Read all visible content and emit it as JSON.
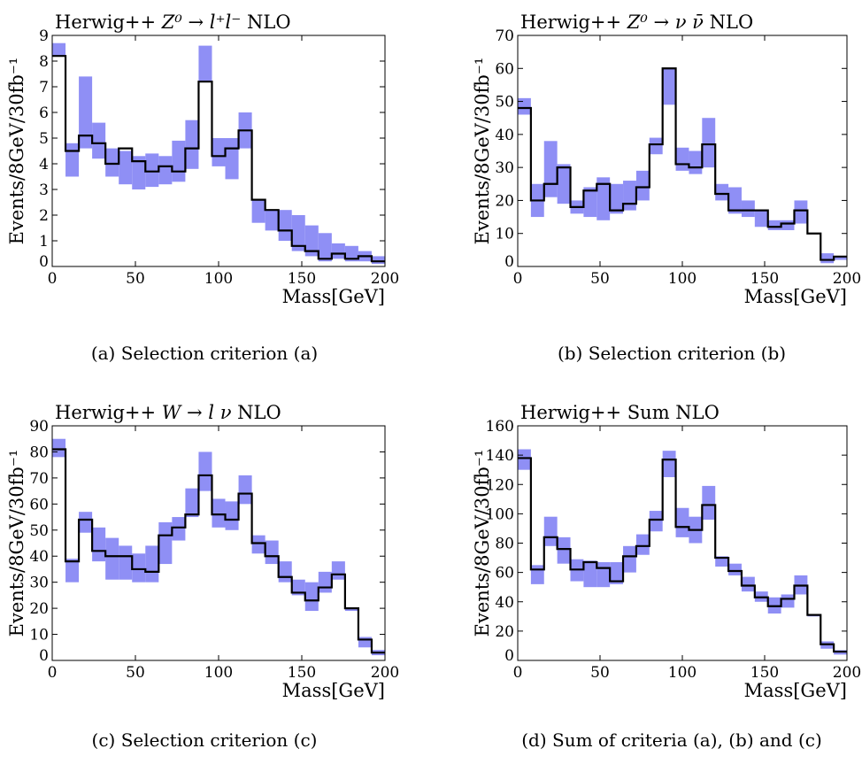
{
  "figure": {
    "panels": [
      {
        "title_prefix": "Herwig++ ",
        "title_math": "Z⁰ → l⁺l⁻",
        "title_suffix": " NLO",
        "ylabel": "Events/8GeV/30fb⁻¹",
        "xlabel": "Mass[GeV]",
        "caption": "(a) Selection criterion (a)"
      },
      {
        "title_prefix": "Herwig++ ",
        "title_math": "Z⁰ → ν ν̄",
        "title_suffix": " NLO",
        "ylabel": "Events/8GeV/30fb⁻¹",
        "xlabel": "Mass[GeV]",
        "caption": "(b) Selection criterion (b)"
      },
      {
        "title_prefix": "Herwig++ ",
        "title_math": "W → l ν",
        "title_suffix": " NLO",
        "ylabel": "Events/8GeV/30fb⁻¹",
        "xlabel": "Mass[GeV]",
        "caption": "(c) Selection criterion (c)"
      },
      {
        "title_prefix": "Herwig++ Sum NLO",
        "title_math": "",
        "title_suffix": "",
        "ylabel": "Events/8GeV/30fb⁻¹",
        "xlabel": "Mass[GeV]",
        "caption": "(d) Sum of criteria (a), (b) and (c)"
      }
    ]
  },
  "colors": {
    "band": "#8f8ff5",
    "line": "#000000"
  },
  "chart_data": [
    {
      "type": "line",
      "title": "Herwig++ Z⁰ → l⁺l⁻ NLO",
      "xlabel": "Mass[GeV]",
      "ylabel": "Events/8GeV/30fb⁻¹",
      "xlim": [
        0,
        200
      ],
      "ylim": [
        0,
        9
      ],
      "xticks": [
        0,
        50,
        100,
        150,
        200
      ],
      "yticks": [
        0,
        1,
        2,
        3,
        4,
        5,
        6,
        7,
        8,
        9
      ],
      "bin_edges": [
        0,
        8,
        16,
        24,
        32,
        40,
        48,
        56,
        64,
        72,
        80,
        88,
        96,
        104,
        112,
        120,
        128,
        136,
        144,
        152,
        160,
        168,
        176,
        184,
        192,
        200
      ],
      "series": [
        {
          "values": [
            8.2,
            4.5,
            5.1,
            4.8,
            4.0,
            4.6,
            4.1,
            3.7,
            3.9,
            3.7,
            4.6,
            7.2,
            4.3,
            4.6,
            5.3,
            2.6,
            2.2,
            1.4,
            0.8,
            0.6,
            0.3,
            0.5,
            0.3,
            0.4,
            0.2
          ]
        }
      ],
      "band_low": [
        8.2,
        3.5,
        4.6,
        4.2,
        3.5,
        3.2,
        3.0,
        3.1,
        3.2,
        3.3,
        3.8,
        7.2,
        3.9,
        3.4,
        4.6,
        1.7,
        1.4,
        1.0,
        0.6,
        0.4,
        0.2,
        0.3,
        0.2,
        0.2,
        0.1
      ],
      "band_high": [
        8.7,
        4.8,
        7.4,
        5.6,
        4.6,
        4.5,
        4.3,
        4.4,
        4.3,
        4.9,
        5.7,
        8.6,
        5.0,
        5.0,
        6.0,
        2.6,
        2.2,
        2.2,
        2.0,
        1.6,
        1.3,
        0.9,
        0.8,
        0.6,
        0.4
      ]
    },
    {
      "type": "line",
      "title": "Herwig++ Z⁰ → ν ν̄ NLO",
      "xlabel": "Mass[GeV]",
      "ylabel": "Events/8GeV/30fb⁻¹",
      "xlim": [
        0,
        200
      ],
      "ylim": [
        0,
        70
      ],
      "xticks": [
        0,
        50,
        100,
        150,
        200
      ],
      "yticks": [
        0,
        10,
        20,
        30,
        40,
        50,
        60,
        70
      ],
      "bin_edges": [
        0,
        8,
        16,
        24,
        32,
        40,
        48,
        56,
        64,
        72,
        80,
        88,
        96,
        104,
        112,
        120,
        128,
        136,
        144,
        152,
        160,
        168,
        176,
        184,
        192,
        200
      ],
      "series": [
        {
          "values": [
            48,
            20,
            25,
            30,
            18,
            23,
            25,
            17,
            19,
            24,
            37,
            60,
            31,
            30,
            37,
            22,
            17,
            17,
            17,
            12,
            13,
            17,
            10,
            2,
            3
          ]
        }
      ],
      "band_low": [
        46,
        15,
        21,
        19,
        16,
        15,
        14,
        16,
        17,
        20,
        34,
        49,
        29,
        28,
        30,
        20,
        16,
        15,
        12,
        11,
        11,
        13,
        10,
        1,
        2
      ],
      "band_high": [
        51,
        25,
        38,
        31,
        20,
        24,
        27,
        25,
        26,
        29,
        39,
        60,
        36,
        35,
        45,
        25,
        24,
        20,
        17,
        14,
        14,
        20,
        10,
        4,
        3
      ]
    },
    {
      "type": "line",
      "title": "Herwig++ W → l ν NLO",
      "xlabel": "Mass[GeV]",
      "ylabel": "Events/8GeV/30fb⁻¹",
      "xlim": [
        0,
        200
      ],
      "ylim": [
        0,
        90
      ],
      "xticks": [
        0,
        50,
        100,
        150,
        200
      ],
      "yticks": [
        0,
        10,
        20,
        30,
        40,
        50,
        60,
        70,
        80,
        90
      ],
      "bin_edges": [
        0,
        8,
        16,
        24,
        32,
        40,
        48,
        56,
        64,
        72,
        80,
        88,
        96,
        104,
        112,
        120,
        128,
        136,
        144,
        152,
        160,
        168,
        176,
        184,
        192,
        200
      ],
      "series": [
        {
          "values": [
            81,
            38,
            54,
            42,
            40,
            40,
            35,
            34,
            48,
            51,
            56,
            71,
            56,
            54,
            64,
            45,
            40,
            32,
            26,
            23,
            28,
            33,
            20,
            8,
            3
          ]
        }
      ],
      "band_low": [
        78,
        30,
        49,
        38,
        31,
        31,
        30,
        30,
        37,
        46,
        55,
        65,
        51,
        50,
        60,
        41,
        37,
        30,
        25,
        19,
        26,
        31,
        19,
        5,
        2
      ],
      "band_high": [
        85,
        39,
        57,
        51,
        47,
        44,
        41,
        44,
        53,
        55,
        66,
        80,
        62,
        61,
        71,
        48,
        46,
        38,
        31,
        30,
        34,
        38,
        20,
        9,
        4
      ]
    },
    {
      "type": "line",
      "title": "Herwig++ Sum NLO",
      "xlabel": "Mass[GeV]",
      "ylabel": "Events/8GeV/30fb⁻¹",
      "xlim": [
        0,
        200
      ],
      "ylim": [
        0,
        160
      ],
      "xticks": [
        0,
        50,
        100,
        150,
        200
      ],
      "yticks": [
        0,
        20,
        40,
        60,
        80,
        100,
        120,
        140,
        160
      ],
      "bin_edges": [
        0,
        8,
        16,
        24,
        32,
        40,
        48,
        56,
        64,
        72,
        80,
        88,
        96,
        104,
        112,
        120,
        128,
        136,
        144,
        152,
        160,
        168,
        176,
        184,
        192,
        200
      ],
      "series": [
        {
          "values": [
            138,
            62,
            84,
            76,
            62,
            67,
            63,
            54,
            71,
            78,
            96,
            137,
            91,
            89,
            106,
            70,
            61,
            51,
            43,
            37,
            42,
            51,
            31,
            11,
            6
          ]
        }
      ],
      "band_low": [
        130,
        52,
        78,
        66,
        54,
        50,
        50,
        52,
        60,
        72,
        88,
        125,
        84,
        80,
        96,
        64,
        58,
        47,
        40,
        32,
        36,
        45,
        30,
        8,
        4
      ],
      "band_high": [
        144,
        65,
        98,
        84,
        69,
        68,
        67,
        67,
        78,
        86,
        102,
        143,
        104,
        98,
        119,
        71,
        66,
        57,
        47,
        43,
        45,
        58,
        31,
        13,
        7
      ]
    }
  ]
}
